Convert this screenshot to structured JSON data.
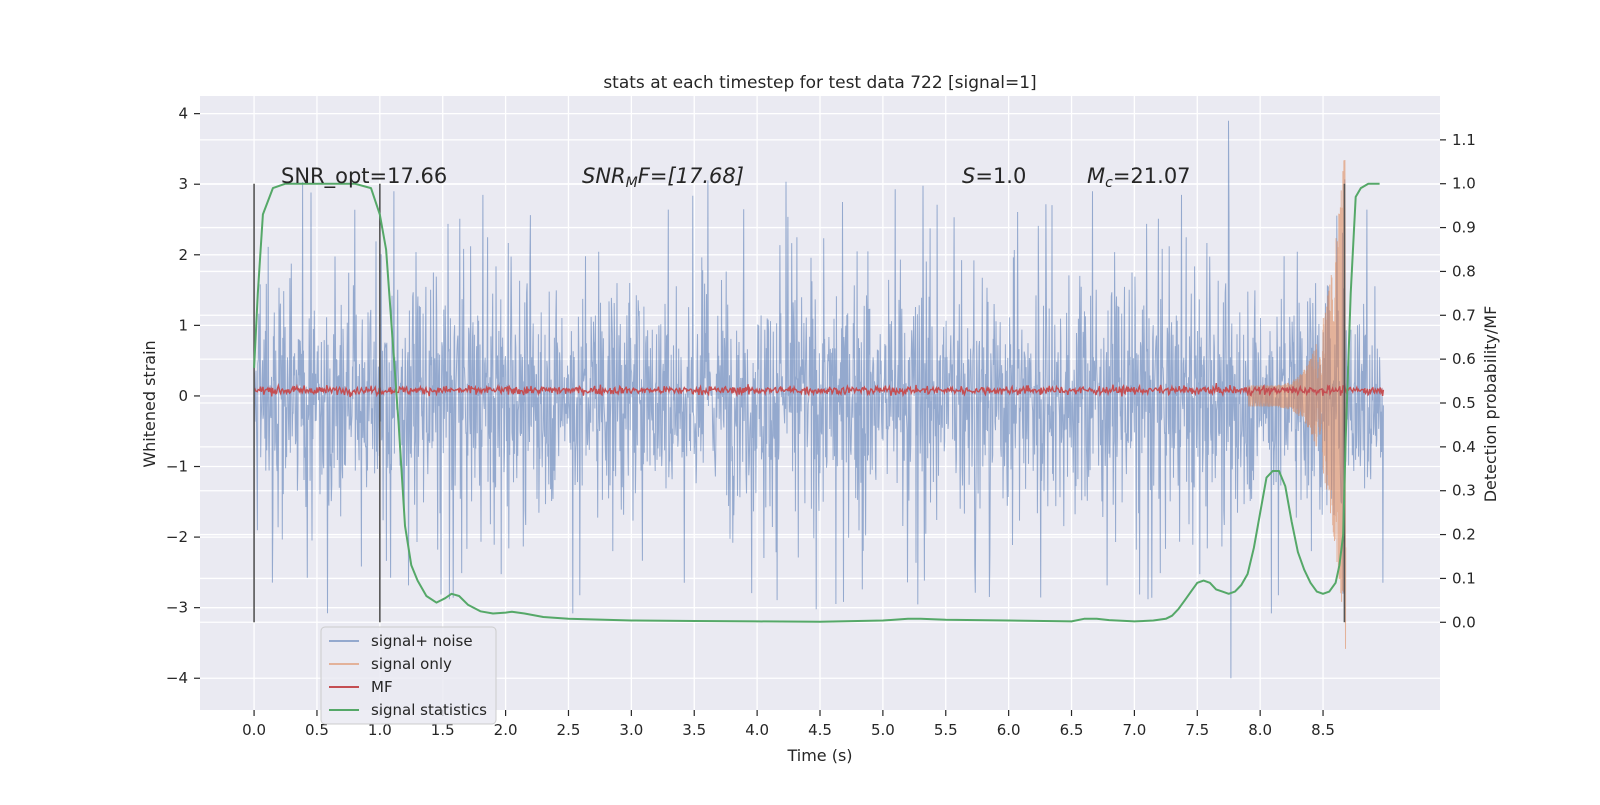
{
  "chart_data": {
    "type": "line",
    "title": "stats at each timestep for test data 722 [signal=1]",
    "xlabel": "Time (s)",
    "ylabel": "Whitened strain",
    "ylabel_right": "Detection probability/MF",
    "xlim": [
      -0.43,
      9.43
    ],
    "ylim": [
      -4.45,
      4.25
    ],
    "ylim_right": [
      -0.2,
      1.2
    ],
    "x_ticks": [
      0.0,
      0.5,
      1.0,
      1.5,
      2.0,
      2.5,
      3.0,
      3.5,
      4.0,
      4.5,
      5.0,
      5.5,
      6.0,
      6.5,
      7.0,
      7.5,
      8.0,
      8.5
    ],
    "x_tick_labels": [
      "0.0",
      "0.5",
      "1.0",
      "1.5",
      "2.0",
      "2.5",
      "3.0",
      "3.5",
      "4.0",
      "4.5",
      "5.0",
      "5.5",
      "6.0",
      "6.5",
      "7.0",
      "7.5",
      "8.0",
      "8.5"
    ],
    "y_ticks": [
      -4,
      -3,
      -2,
      -1,
      0,
      1,
      2,
      3,
      4
    ],
    "y_tick_labels": [
      "−4",
      "−3",
      "−2",
      "−1",
      "0",
      "1",
      "2",
      "3",
      "4"
    ],
    "y_right_ticks": [
      0.0,
      0.1,
      0.2,
      0.3,
      0.4,
      0.5,
      0.6,
      0.7,
      0.8,
      0.9,
      1.0,
      1.1
    ],
    "y_right_tick_labels": [
      "0.0",
      "0.1",
      "0.2",
      "0.3",
      "0.4",
      "0.5",
      "0.6",
      "0.7",
      "0.8",
      "0.9",
      "1.0",
      "1.1"
    ],
    "grid": true,
    "legend_placement": "lower-left",
    "annotations": {
      "snr_opt": "SNR_opt=17.66",
      "snr_mf": "SNR",
      "snr_mf_sub": "M",
      "snr_mf_rest": "F=[17.68]",
      "s_label": "S",
      "s_value": "=1.0",
      "mc_label": "M",
      "mc_sub": "c",
      "mc_value": "=21.07"
    },
    "vertical_markers": [
      {
        "name": "window-start",
        "x": 0.0
      },
      {
        "name": "window-end",
        "x": 1.0
      },
      {
        "name": "merger",
        "x": 8.67
      }
    ],
    "series": [
      {
        "name": "signal+ noise",
        "color": "#4c72b0",
        "axis": "left",
        "style": "noise",
        "x_range": [
          0.0,
          8.98
        ],
        "approx_amplitude": 1.2,
        "approx_peak": 3.9,
        "approx_min": -4.0
      },
      {
        "name": "signal only",
        "color": "#dd8452",
        "axis": "left",
        "style": "chirp",
        "x_range": [
          7.9,
          8.68
        ],
        "peak_amplitude": 3.5
      },
      {
        "name": "MF",
        "color": "#c44e52",
        "axis": "left",
        "style": "flat-noise",
        "x_range": [
          0.0,
          8.98
        ],
        "level": 0.08,
        "approx_spread": 0.06
      },
      {
        "name": "signal statistics",
        "color": "#55a868",
        "axis": "right",
        "style": "line",
        "x": [
          0.0,
          0.03,
          0.07,
          0.15,
          0.25,
          0.4,
          0.6,
          0.8,
          0.93,
          1.0,
          1.05,
          1.1,
          1.15,
          1.2,
          1.25,
          1.3,
          1.37,
          1.45,
          1.52,
          1.57,
          1.63,
          1.7,
          1.8,
          1.9,
          2.0,
          2.05,
          2.15,
          2.3,
          2.5,
          3.0,
          3.5,
          4.0,
          4.5,
          5.0,
          5.2,
          5.3,
          5.5,
          6.0,
          6.5,
          6.6,
          6.7,
          6.8,
          7.0,
          7.15,
          7.25,
          7.3,
          7.35,
          7.4,
          7.45,
          7.5,
          7.55,
          7.6,
          7.65,
          7.7,
          7.75,
          7.8,
          7.85,
          7.9,
          7.95,
          8.0,
          8.05,
          8.1,
          8.15,
          8.2,
          8.25,
          8.3,
          8.35,
          8.4,
          8.45,
          8.5,
          8.55,
          8.6,
          8.63,
          8.66,
          8.68,
          8.72,
          8.76,
          8.8,
          8.86,
          8.92,
          8.95
        ],
        "y": [
          0.58,
          0.75,
          0.93,
          0.99,
          1.0,
          1.0,
          1.0,
          1.0,
          0.99,
          0.93,
          0.85,
          0.65,
          0.45,
          0.22,
          0.13,
          0.095,
          0.06,
          0.045,
          0.055,
          0.065,
          0.06,
          0.04,
          0.025,
          0.02,
          0.022,
          0.024,
          0.02,
          0.012,
          0.008,
          0.004,
          0.003,
          0.002,
          0.001,
          0.004,
          0.008,
          0.008,
          0.006,
          0.004,
          0.002,
          0.008,
          0.008,
          0.005,
          0.002,
          0.004,
          0.008,
          0.015,
          0.03,
          0.05,
          0.07,
          0.09,
          0.095,
          0.09,
          0.075,
          0.07,
          0.065,
          0.07,
          0.085,
          0.11,
          0.17,
          0.25,
          0.33,
          0.345,
          0.345,
          0.31,
          0.23,
          0.16,
          0.12,
          0.09,
          0.07,
          0.065,
          0.07,
          0.09,
          0.13,
          0.2,
          0.42,
          0.75,
          0.97,
          0.99,
          1.0,
          1.0,
          1.0
        ]
      }
    ]
  }
}
